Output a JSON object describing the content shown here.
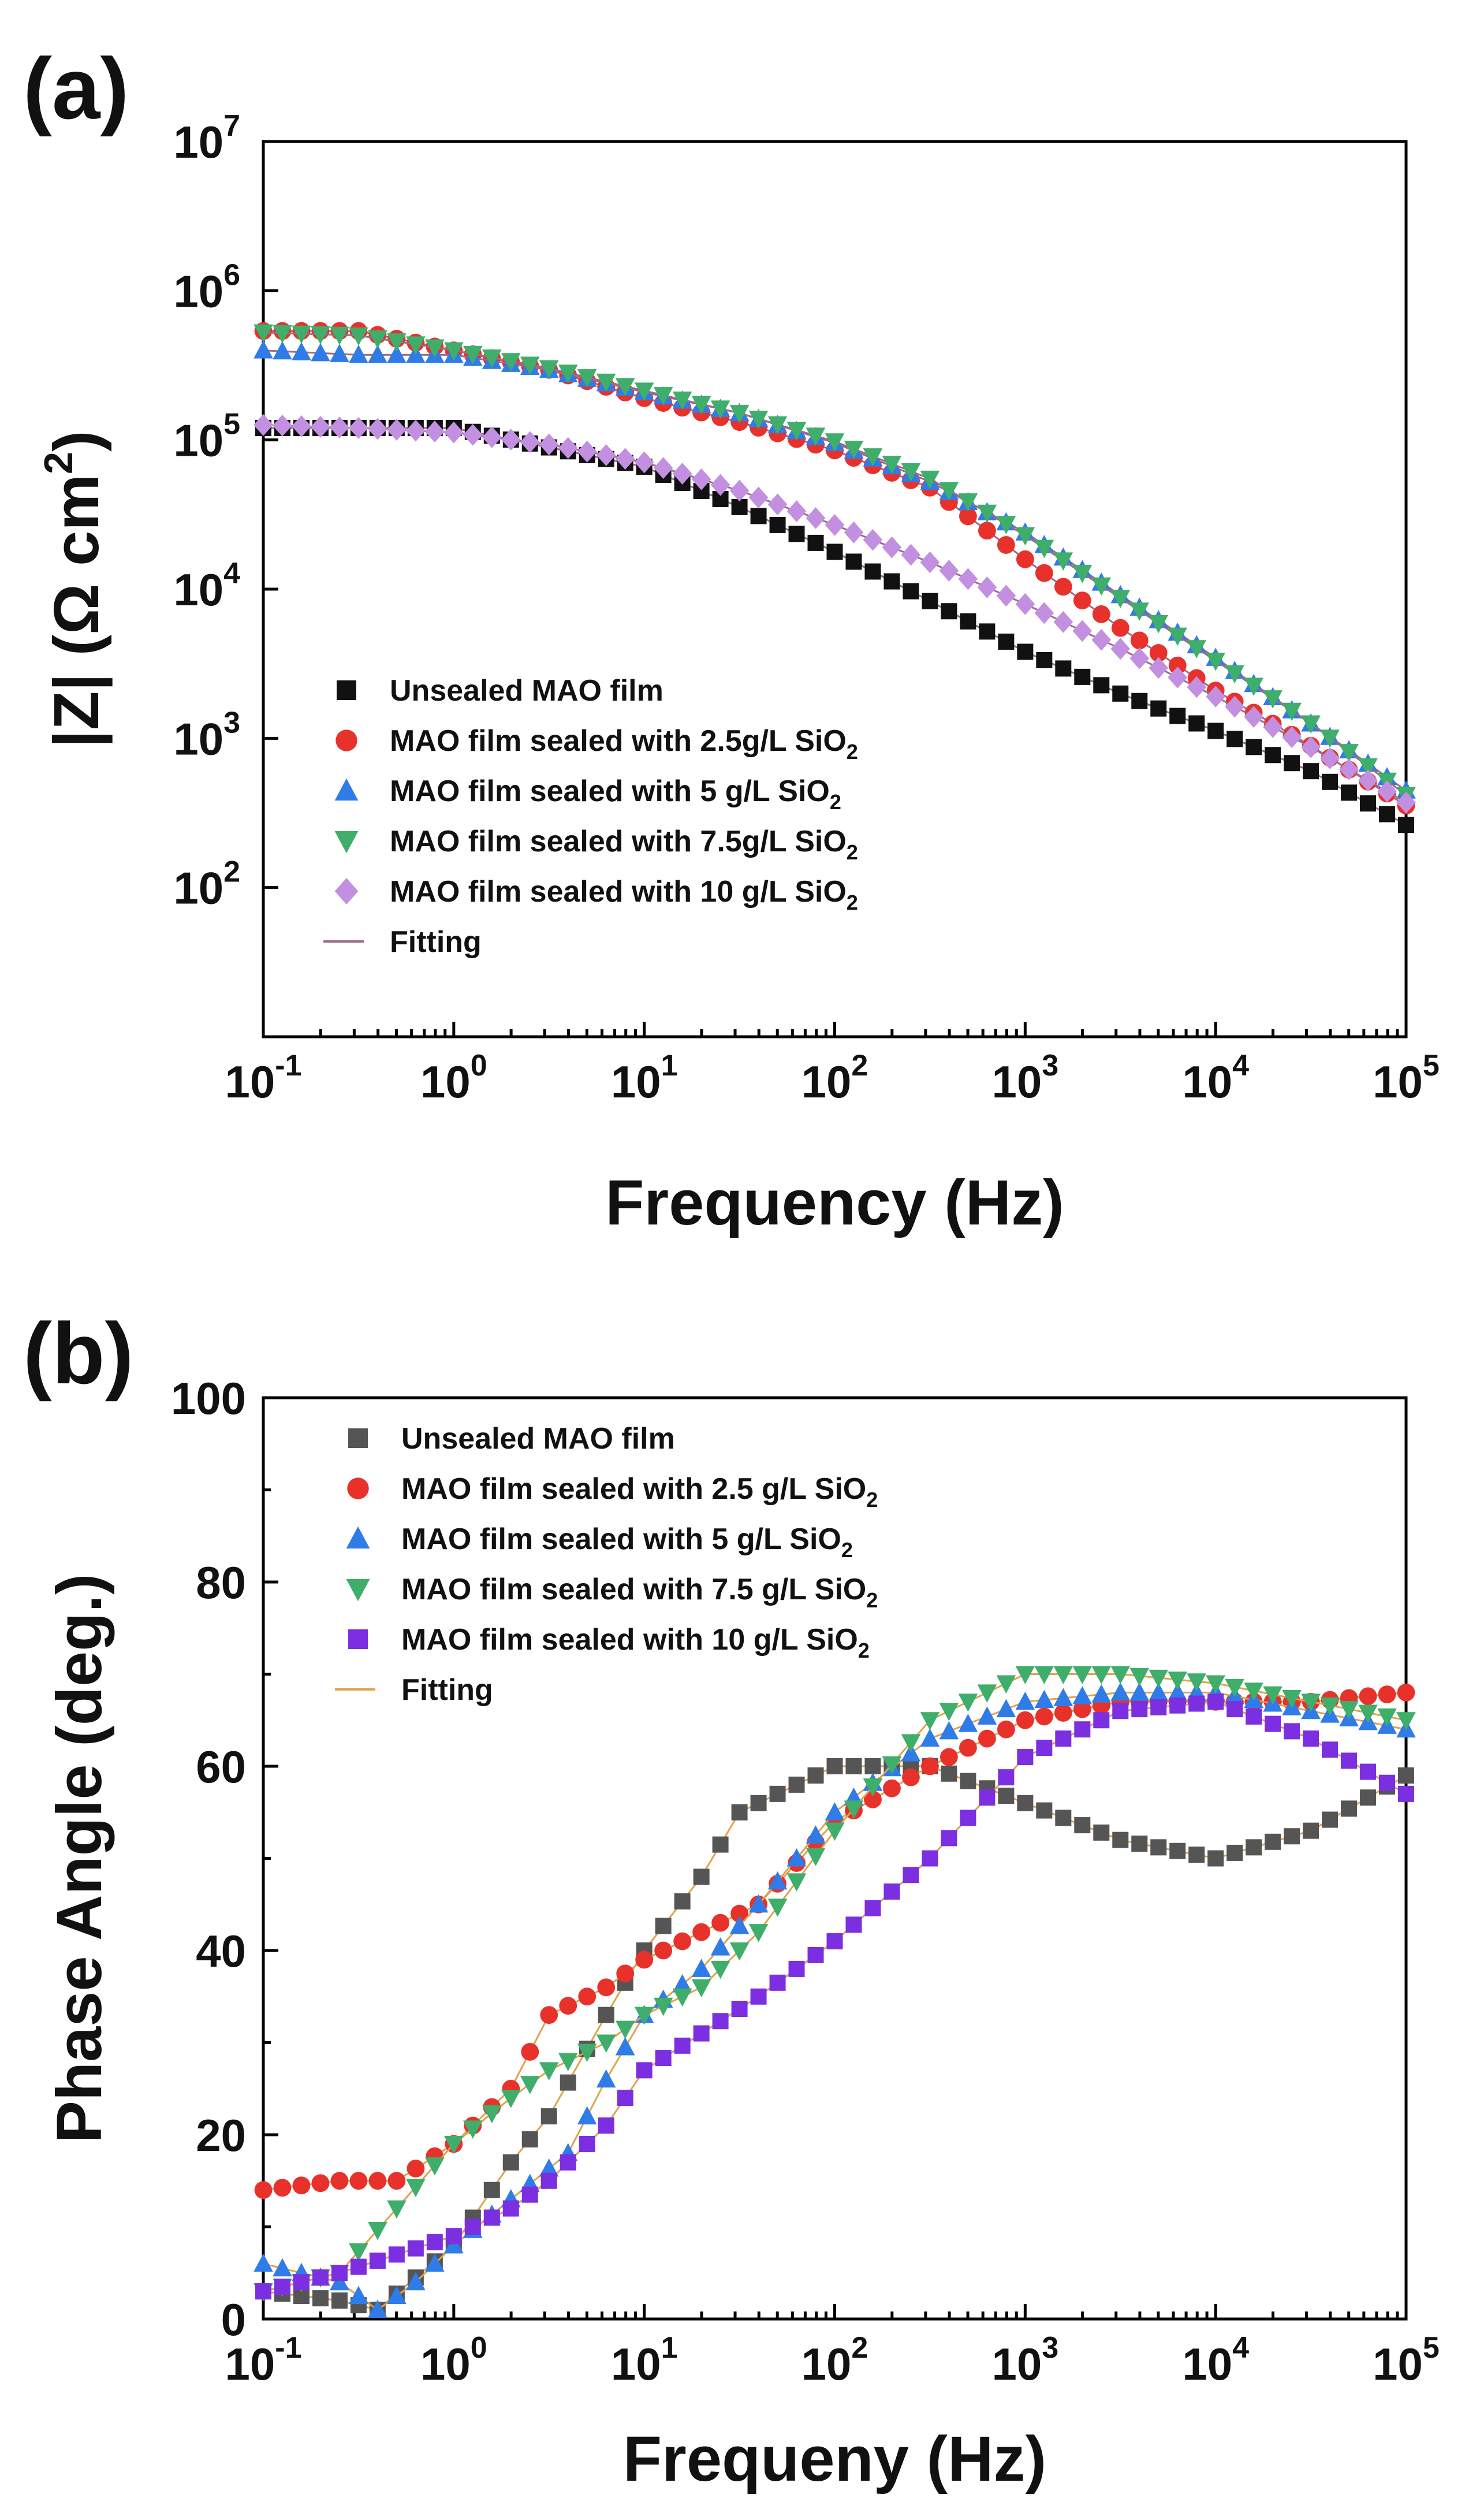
{
  "chart_data": [
    {
      "panel_label": "(a)",
      "type": "scatter",
      "xscale": "log",
      "yscale": "log",
      "xlabel": "Frequency (Hz)",
      "ylabel": "|Z| (Ω cm²)",
      "ylabel_parts": {
        "pre": "|Z| (Ω cm",
        "sup": "2",
        "post": ")"
      },
      "xlim": [
        0.1,
        100000
      ],
      "ylim": [
        10,
        10000000
      ],
      "xticks": [
        {
          "base": "10",
          "exp": "-1"
        },
        {
          "base": "10",
          "exp": "0"
        },
        {
          "base": "10",
          "exp": "1"
        },
        {
          "base": "10",
          "exp": "2"
        },
        {
          "base": "10",
          "exp": "3"
        },
        {
          "base": "10",
          "exp": "4"
        },
        {
          "base": "10",
          "exp": "5"
        }
      ],
      "yticks": [
        {
          "base": "10",
          "exp": "2"
        },
        {
          "base": "10",
          "exp": "3"
        },
        {
          "base": "10",
          "exp": "4"
        },
        {
          "base": "10",
          "exp": "5"
        },
        {
          "base": "10",
          "exp": "6"
        },
        {
          "base": "10",
          "exp": "7"
        }
      ],
      "legend_position": "lower-left",
      "series": [
        {
          "name": "Unsealed MAO film",
          "label_pre": "Unsealed MAO film",
          "label_sub": "",
          "marker": "square",
          "color": "#111111",
          "x_log": [
            -1,
            0,
            0.5,
            1,
            1.5,
            2,
            2.5,
            3,
            3.5,
            4,
            4.5,
            5
          ],
          "y_log": [
            5.08,
            5.08,
            4.95,
            4.82,
            4.55,
            4.25,
            3.92,
            3.58,
            3.3,
            3.05,
            2.78,
            2.42
          ]
        },
        {
          "name": "MAO film sealed with 2.5g/L SiO2",
          "label_pre": "MAO film sealed with 2.5g/L SiO",
          "label_sub": "2",
          "marker": "circle",
          "color": "#e8312a",
          "x_log": [
            -1,
            -0.5,
            0,
            0.5,
            1,
            1.5,
            2,
            2.5,
            3,
            3.5,
            4,
            4.5,
            5
          ],
          "y_log": [
            5.73,
            5.73,
            5.6,
            5.47,
            5.28,
            5.12,
            4.93,
            4.68,
            4.2,
            3.74,
            3.32,
            2.95,
            2.55
          ]
        },
        {
          "name": "MAO film sealed with 5 g/L SiO2",
          "label_pre": "MAO film sealed with 5 g/L SiO",
          "label_sub": "2",
          "marker": "triangle-up",
          "color": "#2f7ce8",
          "x_log": [
            -1,
            -0.5,
            0,
            0.5,
            1,
            1.5,
            2,
            2.5,
            3,
            3.5,
            4,
            4.5,
            5
          ],
          "y_log": [
            5.6,
            5.57,
            5.57,
            5.47,
            5.32,
            5.18,
            4.98,
            4.72,
            4.38,
            3.96,
            3.54,
            3.1,
            2.65
          ]
        },
        {
          "name": "MAO film sealed with 7.5g/L SiO2",
          "label_pre": "MAO film sealed with 7.5g/L SiO",
          "label_sub": "2",
          "marker": "triangle-down",
          "color": "#3fae6b",
          "x_log": [
            -1,
            -0.5,
            0,
            0.5,
            1,
            1.5,
            2,
            2.5,
            3,
            3.5,
            4,
            4.5,
            5
          ],
          "y_log": [
            5.72,
            5.7,
            5.6,
            5.48,
            5.33,
            5.18,
            4.99,
            4.74,
            4.36,
            3.94,
            3.52,
            3.1,
            2.62
          ]
        },
        {
          "name": "MAO film sealed with 10 g/L SiO2",
          "label_pre": "MAO film sealed with 10 g/L SiO",
          "label_sub": "2",
          "marker": "diamond",
          "color": "#c38fe0",
          "x_log": [
            -1,
            -0.5,
            0,
            0.5,
            1,
            1.5,
            2,
            2.5,
            3,
            3.5,
            4,
            4.5,
            5
          ],
          "y_log": [
            5.1,
            5.08,
            5.05,
            4.97,
            4.85,
            4.66,
            4.43,
            4.18,
            3.9,
            3.6,
            3.28,
            2.94,
            2.57
          ]
        },
        {
          "name": "Fitting",
          "label_pre": "Fitting",
          "label_sub": "",
          "marker": "line",
          "color": "#9c6b8a"
        }
      ]
    },
    {
      "panel_label": "(b)",
      "type": "scatter",
      "xscale": "log",
      "yscale": "linear",
      "xlabel": "Frequeny (Hz)",
      "ylabel": "Phase Angle (deg.)",
      "xlim": [
        0.1,
        100000
      ],
      "ylim": [
        0,
        100
      ],
      "xticks": [
        {
          "base": "10",
          "exp": "-1"
        },
        {
          "base": "10",
          "exp": "0"
        },
        {
          "base": "10",
          "exp": "1"
        },
        {
          "base": "10",
          "exp": "2"
        },
        {
          "base": "10",
          "exp": "3"
        },
        {
          "base": "10",
          "exp": "4"
        },
        {
          "base": "10",
          "exp": "5"
        }
      ],
      "yticks": [
        "0",
        "20",
        "40",
        "60",
        "80",
        "100"
      ],
      "legend_position": "top-left",
      "series": [
        {
          "name": "Unsealed MAO film",
          "label_pre": "Unsealed MAO film",
          "label_sub": "",
          "marker": "square",
          "color": "#555555",
          "x_log": [
            -1,
            -0.6,
            -0.4,
            0,
            0.3,
            0.5,
            0.8,
            1,
            1.3,
            1.5,
            2,
            2.5,
            3,
            3.5,
            4,
            4.5,
            5
          ],
          "y": [
            3,
            2,
            1,
            8,
            17,
            22,
            33,
            40,
            48,
            55,
            60,
            60,
            56,
            52,
            50,
            53,
            59
          ]
        },
        {
          "name": "MAO film sealed with 2.5 g/L SiO2",
          "label_pre": "MAO film sealed with 2.5 g/L SiO",
          "label_sub": "2",
          "marker": "circle",
          "color": "#e8312a",
          "x_log": [
            -1,
            -0.6,
            -0.3,
            0,
            0.3,
            0.5,
            0.8,
            1,
            1.3,
            1.6,
            2,
            2.5,
            3,
            3.5,
            4,
            4.5,
            5
          ],
          "y": [
            14,
            15,
            15,
            19,
            25,
            33,
            36,
            39,
            42,
            45,
            54,
            60,
            65,
            67,
            67,
            67,
            68
          ]
        },
        {
          "name": "MAO film sealed with 5 g/L SiO2",
          "label_pre": "MAO film sealed with 5 g/L SiO",
          "label_sub": "2",
          "marker": "triangle-up",
          "color": "#2f7ce8",
          "x_log": [
            -1,
            -0.6,
            -0.4,
            -0.2,
            0,
            0.3,
            0.6,
            0.8,
            1,
            1.3,
            1.6,
            2,
            2.5,
            3,
            3.5,
            4,
            4.5,
            5
          ],
          "y": [
            6,
            4,
            1,
            4,
            8,
            13,
            18,
            26,
            33,
            38,
            45,
            55,
            63,
            67,
            68,
            68,
            66,
            64
          ]
        },
        {
          "name": "MAO film sealed with 7.5 g/L SiO2",
          "label_pre": "MAO film sealed with 7.5 g/L SiO",
          "label_sub": "2",
          "marker": "triangle-down",
          "color": "#3fae6b",
          "x_log": [
            -1,
            -0.6,
            -0.3,
            0,
            0.3,
            0.5,
            0.8,
            1,
            1.3,
            1.6,
            2,
            2.5,
            3,
            3.5,
            4,
            4.5,
            5
          ],
          "y": [
            3,
            5,
            12,
            19,
            24,
            27,
            30,
            33,
            36,
            42,
            53,
            65,
            70,
            70,
            69,
            67,
            65
          ]
        },
        {
          "name": "MAO film sealed with 10 g/L SiO2",
          "label_pre": "MAO film sealed with 10 g/L SiO",
          "label_sub": "2",
          "marker": "square",
          "color": "#7b2fe0",
          "x_log": [
            -1,
            -0.6,
            -0.3,
            0,
            0.3,
            0.5,
            0.8,
            1,
            1.3,
            1.6,
            2,
            2.5,
            3,
            3.5,
            4,
            4.5,
            5
          ],
          "y": [
            3,
            5,
            7,
            9,
            12,
            15,
            21,
            27,
            31,
            35,
            41,
            50,
            61,
            66,
            67,
            63,
            57
          ]
        },
        {
          "name": "Fitting",
          "label_pre": "Fitting",
          "label_sub": "",
          "marker": "line",
          "color": "#e0a24a"
        }
      ]
    }
  ]
}
